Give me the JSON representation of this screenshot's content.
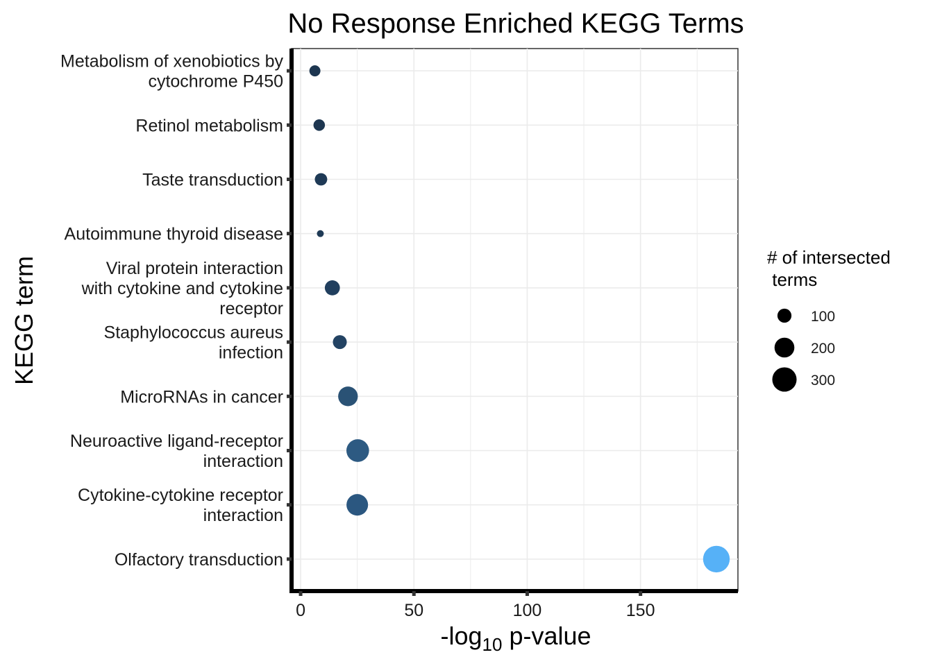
{
  "chart_data": {
    "type": "scatter",
    "title": "No Response Enriched KEGG Terms",
    "xlabel_main": "-log",
    "xlabel_sub": "10",
    "xlabel_rest": " p-value",
    "ylabel": "KEGG term",
    "xlim": [
      -4,
      193
    ],
    "x_ticks": [
      0,
      50,
      100,
      150
    ],
    "grid": true,
    "categories": [
      [
        "Metabolism of xenobiotics by",
        "cytochrome P450"
      ],
      [
        "Retinol metabolism"
      ],
      [
        "Taste transduction"
      ],
      [
        "Autoimmune thyroid disease"
      ],
      [
        "Viral protein interaction",
        "with cytokine and cytokine",
        "receptor"
      ],
      [
        "Staphylococcus aureus",
        "infection"
      ],
      [
        "MicroRNAs in cancer"
      ],
      [
        "Neuroactive ligand-receptor",
        "interaction"
      ],
      [
        "Cytokine-cytokine receptor",
        "interaction"
      ],
      [
        "Olfactory transduction"
      ]
    ],
    "points": [
      {
        "x": 6.3,
        "size": 62,
        "color": "#1d3650"
      },
      {
        "x": 8.2,
        "size": 67,
        "color": "#1d3650"
      },
      {
        "x": 9.0,
        "size": 78,
        "color": "#1f3a56"
      },
      {
        "x": 8.7,
        "size": 24,
        "color": "#1f3a56"
      },
      {
        "x": 14.0,
        "size": 115,
        "color": "#213f5e"
      },
      {
        "x": 17.3,
        "size": 98,
        "color": "#234363"
      },
      {
        "x": 20.9,
        "size": 196,
        "color": "#2a5275"
      },
      {
        "x": 25.2,
        "size": 260,
        "color": "#2d5a82"
      },
      {
        "x": 25.0,
        "size": 236,
        "color": "#2b5780"
      },
      {
        "x": 183.5,
        "size": 360,
        "color": "#56b1f7"
      }
    ],
    "legend": {
      "title": [
        "# of intersected",
        " terms"
      ],
      "position": "right",
      "entries": [
        {
          "label": "100",
          "size": 100
        },
        {
          "label": "200",
          "size": 200
        },
        {
          "label": "300",
          "size": 300
        }
      ]
    }
  }
}
